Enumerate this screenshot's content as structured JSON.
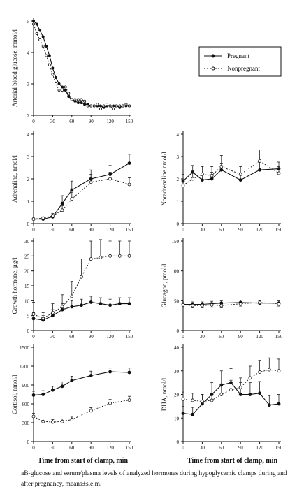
{
  "legend": {
    "pregnant": "Pregnant",
    "nonpregnant": "Nonpregnant"
  },
  "x_label": "Time from start of clamp, min",
  "caption": "aB-glucose and serum/plasma levels of analyzed hormones during hypoglycemic clamps during and after pregnancy, means±s.e.m.",
  "chart_data": [
    {
      "id": "glucose",
      "type": "line",
      "ylabel": "Arterial blood glucose, mmol/l",
      "ylim": [
        2,
        5
      ],
      "yticks": [
        2,
        3,
        4,
        5
      ],
      "xlim": [
        0,
        150
      ],
      "xticks": [
        0,
        30,
        60,
        90,
        120,
        150
      ],
      "series": [
        {
          "name": "Pregnant",
          "x": [
            0,
            5,
            10,
            15,
            20,
            25,
            30,
            35,
            40,
            45,
            50,
            55,
            60,
            65,
            70,
            75,
            80,
            85,
            90,
            95,
            100,
            105,
            110,
            115,
            120,
            125,
            130,
            135,
            140,
            145,
            150
          ],
          "values": [
            5.0,
            4.9,
            4.7,
            4.5,
            4.2,
            3.9,
            3.5,
            3.2,
            3.0,
            2.9,
            2.8,
            2.6,
            2.5,
            2.45,
            2.4,
            2.4,
            2.35,
            2.35,
            2.3,
            2.3,
            2.3,
            2.3,
            2.25,
            2.3,
            2.3,
            2.3,
            2.3,
            2.25,
            2.3,
            2.3,
            2.3
          ]
        },
        {
          "name": "Nonpregnant",
          "x": [
            0,
            5,
            10,
            15,
            20,
            25,
            30,
            35,
            40,
            45,
            50,
            55,
            60,
            65,
            70,
            75,
            80,
            85,
            90,
            95,
            100,
            105,
            110,
            115,
            120,
            125,
            130,
            135,
            140,
            145,
            150
          ],
          "values": [
            4.9,
            4.6,
            4.4,
            4.2,
            3.9,
            3.6,
            3.3,
            3.0,
            2.8,
            2.8,
            2.9,
            2.7,
            2.5,
            2.5,
            2.5,
            2.5,
            2.45,
            2.3,
            2.3,
            2.3,
            2.35,
            2.2,
            2.3,
            2.35,
            2.3,
            2.2,
            2.3,
            2.3,
            2.3,
            2.35,
            2.3
          ]
        }
      ]
    },
    {
      "id": "adrenaline",
      "type": "line",
      "ylabel": "Adrenaline, nmol/l",
      "ylim": [
        0,
        4
      ],
      "yticks": [
        0,
        1,
        2,
        3,
        4
      ],
      "xlim": [
        0,
        150
      ],
      "xticks": [
        0,
        30,
        60,
        90,
        120,
        150
      ],
      "series": [
        {
          "name": "Pregnant",
          "x": [
            0,
            15,
            30,
            45,
            60,
            90,
            120,
            150
          ],
          "values": [
            0.2,
            0.2,
            0.3,
            0.9,
            1.5,
            2.0,
            2.2,
            2.7
          ],
          "err": [
            0.05,
            0.05,
            0.1,
            0.35,
            0.4,
            0.4,
            0.4,
            0.4
          ]
        },
        {
          "name": "Nonpregnant",
          "x": [
            0,
            15,
            30,
            45,
            60,
            90,
            120,
            150
          ],
          "values": [
            0.2,
            0.25,
            0.35,
            0.6,
            1.1,
            1.85,
            2.0,
            1.75
          ],
          "err": [
            0.05,
            0.05,
            0.1,
            0.2,
            0.3,
            0.35,
            0.3,
            0.3
          ]
        }
      ]
    },
    {
      "id": "noradrenaline",
      "type": "line",
      "ylabel": "Noradrenaline nmol/l",
      "ylim": [
        0,
        4
      ],
      "yticks": [
        0,
        1,
        2,
        3,
        4
      ],
      "xlim": [
        0,
        150
      ],
      "xticks": [
        0,
        30,
        60,
        90,
        120,
        150
      ],
      "series": [
        {
          "name": "Pregnant",
          "x": [
            0,
            15,
            30,
            45,
            60,
            90,
            120,
            150
          ],
          "values": [
            1.9,
            2.3,
            1.95,
            2.0,
            2.4,
            1.95,
            2.4,
            2.45
          ],
          "err": [
            0.3,
            0.3,
            0.3,
            0.3,
            0.3,
            0.3,
            0.35,
            0.3
          ]
        },
        {
          "name": "Nonpregnant",
          "x": [
            0,
            15,
            30,
            45,
            60,
            90,
            120,
            150
          ],
          "values": [
            1.7,
            2.0,
            2.2,
            2.15,
            2.55,
            2.2,
            2.8,
            2.25
          ],
          "err": [
            0.3,
            0.35,
            0.35,
            0.4,
            0.5,
            0.35,
            0.5,
            0.3
          ]
        }
      ]
    },
    {
      "id": "growth_hormone",
      "type": "line",
      "ylabel": "Growth hormone, µg/l",
      "ylim": [
        0,
        30
      ],
      "yticks": [
        0,
        5,
        10,
        15,
        20,
        25,
        30
      ],
      "xlim": [
        0,
        150
      ],
      "xticks": [
        0,
        30,
        60,
        90,
        120,
        150
      ],
      "series": [
        {
          "name": "Pregnant",
          "x": [
            0,
            15,
            30,
            45,
            60,
            75,
            90,
            105,
            120,
            135,
            150
          ],
          "values": [
            4.0,
            3.5,
            5.0,
            7.0,
            8.0,
            8.5,
            9.5,
            9.0,
            8.5,
            9.0,
            9.0
          ],
          "err": [
            2,
            1.5,
            2,
            2,
            2,
            2,
            2,
            2,
            2,
            2,
            2
          ]
        },
        {
          "name": "Nonpregnant",
          "x": [
            0,
            15,
            30,
            45,
            60,
            75,
            90,
            105,
            120,
            135,
            150
          ],
          "values": [
            5.5,
            4.0,
            6.0,
            8.0,
            11.5,
            18.0,
            24.0,
            24.5,
            25.0,
            25.0,
            25.0
          ],
          "err": [
            4,
            2,
            3,
            4,
            5,
            6,
            6,
            6,
            5,
            5,
            5
          ]
        }
      ]
    },
    {
      "id": "glucagon",
      "type": "line",
      "ylabel": "Glucagon, pmol/l",
      "ylim": [
        0,
        150
      ],
      "yticks": [
        0,
        50,
        100,
        150
      ],
      "xlim": [
        0,
        150
      ],
      "xticks": [
        0,
        30,
        60,
        90,
        120,
        150
      ],
      "series": [
        {
          "name": "Pregnant",
          "x": [
            0,
            15,
            30,
            45,
            60,
            90,
            120,
            150
          ],
          "values": [
            44,
            44,
            44,
            45,
            46,
            47,
            46,
            46
          ],
          "err": [
            4,
            4,
            4,
            4,
            4,
            4,
            4,
            4
          ]
        },
        {
          "name": "Nonpregnant",
          "x": [
            0,
            15,
            30,
            45,
            60,
            90,
            120,
            150
          ],
          "values": [
            43,
            42,
            42,
            43,
            42,
            45,
            47,
            45
          ],
          "err": [
            4,
            4,
            4,
            4,
            4,
            4,
            4,
            4
          ]
        }
      ]
    },
    {
      "id": "cortisol",
      "type": "line",
      "ylabel": "Cortisol, nmol/l",
      "ylim": [
        0,
        1500
      ],
      "yticks": [
        0,
        300,
        600,
        900,
        1200,
        1500
      ],
      "xlim": [
        0,
        150
      ],
      "xticks": [
        0,
        30,
        60,
        90,
        120,
        150
      ],
      "series": [
        {
          "name": "Pregnant",
          "x": [
            0,
            15,
            30,
            45,
            60,
            90,
            120,
            150
          ],
          "values": [
            740,
            750,
            820,
            880,
            970,
            1050,
            1110,
            1100
          ],
          "err": [
            60,
            60,
            60,
            70,
            70,
            70,
            60,
            70
          ]
        },
        {
          "name": "Nonpregnant",
          "x": [
            0,
            15,
            30,
            45,
            60,
            90,
            120,
            150
          ],
          "values": [
            400,
            320,
            310,
            320,
            350,
            490,
            610,
            660
          ],
          "err": [
            50,
            40,
            40,
            40,
            40,
            50,
            60,
            60
          ]
        }
      ]
    },
    {
      "id": "dha",
      "type": "line",
      "ylabel": "DHA, nmol/l",
      "ylim": [
        0,
        40
      ],
      "yticks": [
        0,
        10,
        20,
        30,
        40
      ],
      "xlim": [
        0,
        150
      ],
      "xticks": [
        0,
        30,
        60,
        90,
        120,
        150
      ],
      "series": [
        {
          "name": "Pregnant",
          "x": [
            0,
            15,
            30,
            45,
            60,
            75,
            90,
            105,
            120,
            135,
            150
          ],
          "values": [
            12,
            11.5,
            16,
            20,
            24,
            25,
            20,
            20,
            20.5,
            15.5,
            16
          ],
          "err": [
            3,
            3,
            4,
            5,
            6,
            6,
            5,
            5,
            5,
            4,
            4
          ]
        },
        {
          "name": "Nonpregnant",
          "x": [
            0,
            15,
            30,
            45,
            60,
            75,
            90,
            105,
            120,
            135,
            150
          ],
          "values": [
            18,
            17.5,
            17,
            17.5,
            20,
            22,
            23,
            27,
            29.5,
            30.5,
            30
          ],
          "err": [
            3,
            3,
            3,
            3,
            4,
            4,
            4,
            5,
            5,
            5,
            5
          ]
        }
      ]
    }
  ]
}
